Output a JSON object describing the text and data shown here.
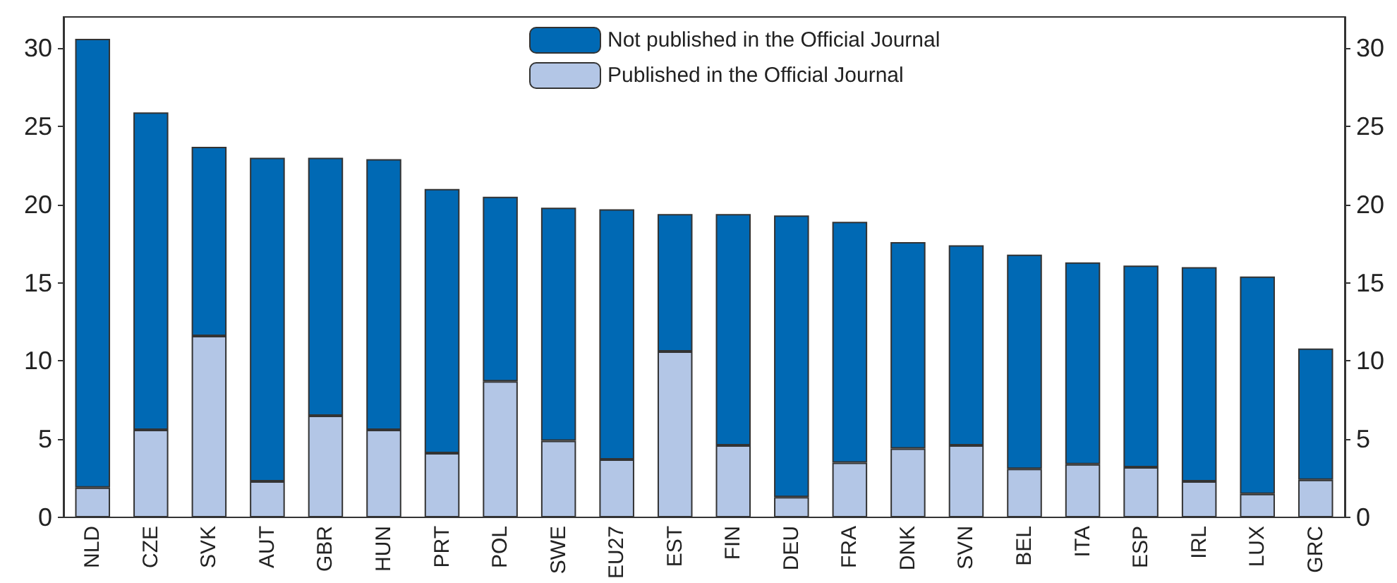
{
  "chart_data": {
    "type": "bar",
    "stacked": true,
    "categories": [
      "NLD",
      "CZE",
      "SVK",
      "AUT",
      "GBR",
      "HUN",
      "PRT",
      "POL",
      "SWE",
      "EU27",
      "EST",
      "FIN",
      "DEU",
      "FRA",
      "DNK",
      "SVN",
      "BEL",
      "ITA",
      "ESP",
      "IRL",
      "LUX",
      "GRC"
    ],
    "series": [
      {
        "name": "Published in the Official Journal",
        "color": "#b3c6e6",
        "values": [
          1.9,
          5.6,
          11.6,
          2.3,
          6.5,
          5.6,
          4.1,
          8.7,
          4.9,
          3.7,
          10.6,
          4.6,
          1.3,
          3.5,
          4.4,
          4.6,
          3.1,
          3.4,
          3.2,
          2.3,
          1.5,
          2.4
        ]
      },
      {
        "name": "Not published in the Official Journal",
        "color": "#0069b4",
        "values": [
          28.7,
          20.3,
          12.1,
          20.7,
          16.5,
          17.3,
          16.9,
          11.8,
          14.9,
          16.0,
          8.8,
          14.8,
          18.0,
          15.4,
          13.2,
          12.8,
          13.7,
          12.9,
          12.9,
          13.7,
          13.9,
          8.4
        ]
      }
    ],
    "ylim": [
      0,
      32
    ],
    "yticks": [
      0,
      5,
      10,
      15,
      20,
      25,
      30
    ],
    "y2lim": [
      0,
      32
    ],
    "y2ticks": [
      0,
      5,
      10,
      15,
      20,
      25,
      30
    ],
    "grid": false,
    "legend": "top"
  }
}
